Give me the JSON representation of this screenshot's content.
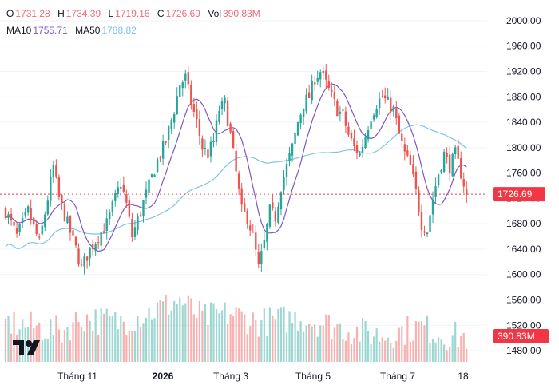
{
  "legend": {
    "open_label": "O",
    "open": "1731.28",
    "high_label": "H",
    "high": "1734.39",
    "low_label": "L",
    "low": "1719.16",
    "close_label": "C",
    "close": "1726.69",
    "vol_label": "Vol",
    "vol": "390,83M",
    "ma10_label": "MA10",
    "ma10": "1755.71",
    "ma50_label": "MA50",
    "ma50": "1788.82"
  },
  "colors": {
    "up": "#26a69a",
    "down": "#ef5350",
    "ma10": "#7e57c2",
    "ma50": "#7ec4e8",
    "price_line": "#f23645",
    "grid": "#f0f3fa",
    "text": "#131722"
  },
  "chart_data": {
    "type": "candlestick",
    "ylim": [
      1470,
      2010
    ],
    "y_ticks": [
      "2000.00",
      "1960.00",
      "1920.00",
      "1880.00",
      "1840.00",
      "1800.00",
      "1760.00",
      "1720.00",
      "1680.00",
      "1640.00",
      "1600.00",
      "1560.00",
      "1520.00",
      "1480.00"
    ],
    "x_labels": [
      "Tháng 11",
      "2026",
      "Tháng 3",
      "Tháng 5",
      "Tháng 7",
      "18"
    ],
    "last_price": {
      "value": 1726.69,
      "label": "1726.69"
    },
    "last_volume": {
      "label": "390.83M"
    },
    "anchors": [
      [
        0,
        1700
      ],
      [
        4,
        1660
      ],
      [
        8,
        1700
      ],
      [
        12,
        1650
      ],
      [
        15,
        1720
      ],
      [
        17,
        1770
      ],
      [
        19,
        1720
      ],
      [
        22,
        1680
      ],
      [
        25,
        1640
      ],
      [
        27,
        1610
      ],
      [
        30,
        1640
      ],
      [
        33,
        1660
      ],
      [
        36,
        1680
      ],
      [
        39,
        1720
      ],
      [
        41,
        1745
      ],
      [
        43,
        1710
      ],
      [
        45,
        1660
      ],
      [
        48,
        1700
      ],
      [
        51,
        1740
      ],
      [
        54,
        1780
      ],
      [
        57,
        1810
      ],
      [
        60,
        1860
      ],
      [
        62,
        1900
      ],
      [
        64,
        1910
      ],
      [
        66,
        1870
      ],
      [
        68,
        1840
      ],
      [
        70,
        1800
      ],
      [
        72,
        1790
      ],
      [
        74,
        1810
      ],
      [
        76,
        1860
      ],
      [
        78,
        1870
      ],
      [
        80,
        1820
      ],
      [
        82,
        1760
      ],
      [
        84,
        1700
      ],
      [
        86,
        1690
      ],
      [
        88,
        1660
      ],
      [
        90,
        1610
      ],
      [
        92,
        1650
      ],
      [
        94,
        1700
      ],
      [
        96,
        1690
      ],
      [
        98,
        1740
      ],
      [
        100,
        1770
      ],
      [
        102,
        1800
      ],
      [
        104,
        1840
      ],
      [
        106,
        1870
      ],
      [
        108,
        1880
      ],
      [
        110,
        1910
      ],
      [
        112,
        1920
      ],
      [
        114,
        1900
      ],
      [
        116,
        1880
      ],
      [
        118,
        1860
      ],
      [
        120,
        1850
      ],
      [
        122,
        1820
      ],
      [
        124,
        1800
      ],
      [
        126,
        1790
      ],
      [
        128,
        1820
      ],
      [
        130,
        1850
      ],
      [
        132,
        1870
      ],
      [
        134,
        1880
      ],
      [
        136,
        1870
      ],
      [
        138,
        1860
      ],
      [
        140,
        1820
      ],
      [
        142,
        1790
      ],
      [
        144,
        1770
      ],
      [
        146,
        1730
      ],
      [
        148,
        1680
      ],
      [
        150,
        1670
      ],
      [
        152,
        1720
      ],
      [
        154,
        1760
      ],
      [
        156,
        1790
      ],
      [
        158,
        1770
      ],
      [
        160,
        1790
      ],
      [
        162,
        1760
      ],
      [
        164,
        1727
      ]
    ],
    "volume_profile": [
      [
        0,
        0.45
      ],
      [
        10,
        0.4
      ],
      [
        20,
        0.35
      ],
      [
        27,
        0.5
      ],
      [
        40,
        0.45
      ],
      [
        50,
        0.55
      ],
      [
        62,
        0.7
      ],
      [
        70,
        0.5
      ],
      [
        80,
        0.55
      ],
      [
        90,
        0.45
      ],
      [
        104,
        0.5
      ],
      [
        112,
        0.45
      ],
      [
        124,
        0.35
      ],
      [
        134,
        0.3
      ],
      [
        148,
        0.4
      ],
      [
        156,
        0.3
      ],
      [
        164,
        0.28
      ]
    ]
  }
}
